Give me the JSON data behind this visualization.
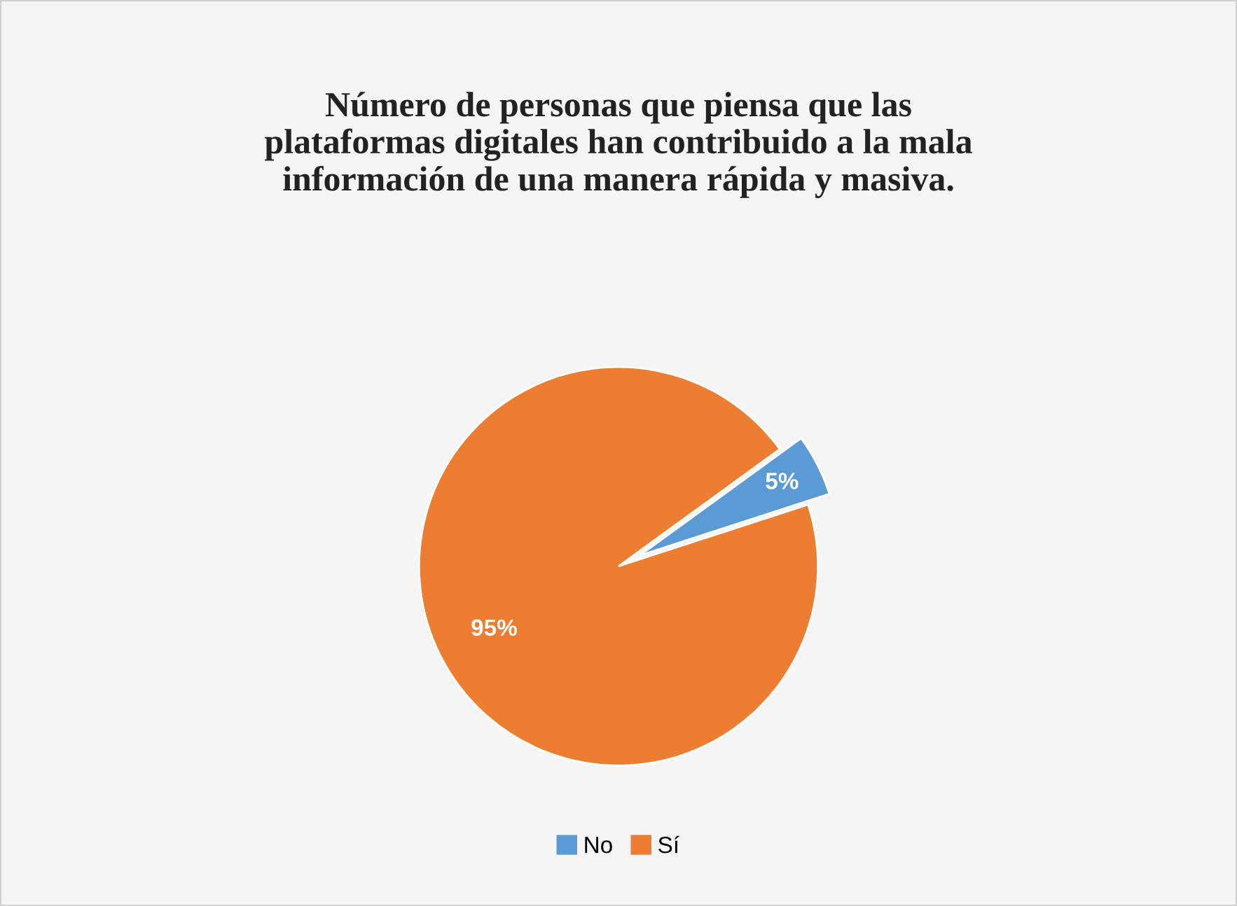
{
  "chart_data": {
    "type": "pie",
    "title": "Número de personas que piensa que las plataformas digitales han contribuido a la mala información de una manera rápida y masiva.",
    "categories": [
      "No",
      "Sí"
    ],
    "values": [
      5,
      95
    ],
    "colors": [
      "#5b9bd5",
      "#ed7d31"
    ],
    "value_labels": [
      "5%",
      "95%"
    ],
    "legend": "bottom"
  }
}
